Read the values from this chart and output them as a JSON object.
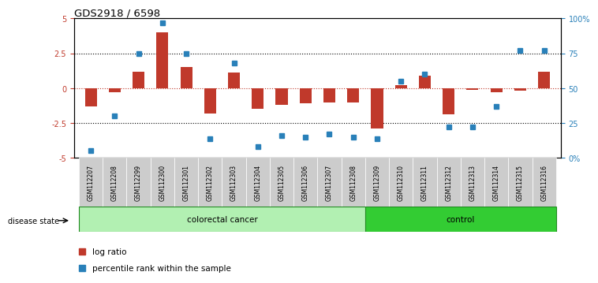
{
  "title": "GDS2918 / 6598",
  "samples": [
    "GSM112207",
    "GSM112208",
    "GSM112299",
    "GSM112300",
    "GSM112301",
    "GSM112302",
    "GSM112303",
    "GSM112304",
    "GSM112305",
    "GSM112306",
    "GSM112307",
    "GSM112308",
    "GSM112309",
    "GSM112310",
    "GSM112311",
    "GSM112312",
    "GSM112313",
    "GSM112314",
    "GSM112315",
    "GSM112316"
  ],
  "log_ratio": [
    -1.3,
    -0.3,
    1.2,
    4.0,
    1.5,
    -1.8,
    1.1,
    -1.5,
    -1.2,
    -1.1,
    -1.0,
    -1.0,
    -2.9,
    0.2,
    0.9,
    -1.9,
    -0.1,
    -0.3,
    -0.2,
    1.2
  ],
  "percentile": [
    5,
    30,
    75,
    97,
    75,
    14,
    68,
    8,
    16,
    15,
    17,
    15,
    14,
    55,
    60,
    22,
    22,
    37,
    77,
    77
  ],
  "colorectal_count": 12,
  "control_count": 8,
  "bar_color": "#c0392b",
  "dot_color": "#2980b9",
  "ylim": [
    -5,
    5
  ],
  "y2lim": [
    0,
    100
  ],
  "yticks": [
    -5,
    -2.5,
    0,
    2.5,
    5
  ],
  "y2ticks": [
    0,
    25,
    50,
    75,
    100
  ],
  "y2ticklabels": [
    "0%",
    "25",
    "50",
    "75",
    "100%"
  ],
  "colorectal_color": "#b2f0b2",
  "control_color": "#33cc33",
  "tick_bg_color": "#cccccc",
  "bar_width": 0.5
}
